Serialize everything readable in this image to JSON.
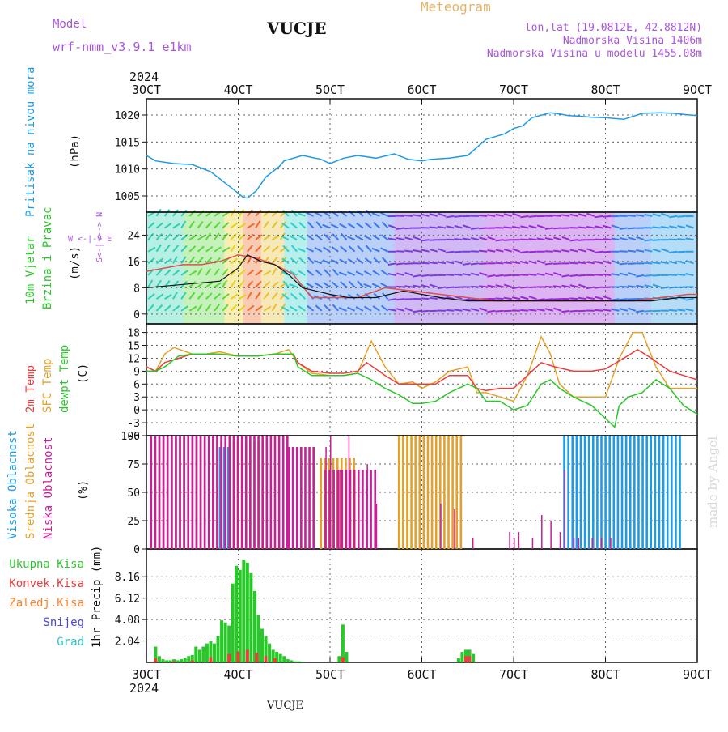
{
  "header": {
    "model_label": "Model",
    "model_name": "wrf-nmm_v3.9.1 e1km",
    "station": "VUCJE",
    "meteogram_label": "Meteogram",
    "lonlat": "lon,lat (19.0812E, 42.8812N)",
    "altitude": "Nadmorska Visina 1406m",
    "model_altitude": "Nadmorska Visina u modelu 1455.08m",
    "year_top": "2024",
    "year_bottom": "2024",
    "footer_station": "VUCJE",
    "watermark": "made by Angel"
  },
  "colors": {
    "pressure": "#1e9be6",
    "temp2m": "#f03c3c",
    "sfc": "#e6a028",
    "dewpt": "#28c828",
    "high_cloud": "#1e9be6",
    "mid_cloud": "#e6a028",
    "low_cloud": "#c81e96",
    "total_precip": "#28c828",
    "conv_precip": "#f03c3c",
    "frozen": "#ff8228",
    "snow": "#4646e6",
    "hail": "#28c8c8",
    "model": "#aa55dd",
    "meteogram": "#e6b464"
  },
  "chart_data": [
    {
      "type": "line",
      "panel": "pressure",
      "ylabel_title": "Pritisak na nivou mora",
      "ylabel_units": "(hPa)",
      "x_unit": "days after 3OCT 00 UTC",
      "x_ticks": [
        "3OCT",
        "4OCT",
        "5OCT",
        "6OCT",
        "7OCT",
        "8OCT",
        "9OCT"
      ],
      "ylim": [
        1002,
        1023
      ],
      "y_ticks": [
        1005,
        1010,
        1015,
        1020
      ],
      "series": [
        {
          "key": "pressure",
          "x": [
            0,
            0.1,
            0.3,
            0.5,
            0.7,
            0.85,
            1.0,
            1.05,
            1.1,
            1.2,
            1.3,
            1.45,
            1.5,
            1.7,
            1.9,
            2.0,
            2.15,
            2.3,
            2.5,
            2.7,
            2.85,
            3.0,
            3.1,
            3.3,
            3.5,
            3.7,
            3.9,
            4.0,
            4.1,
            4.2,
            4.4,
            4.5,
            4.6,
            4.7,
            4.85,
            5.0,
            5.2,
            5.4,
            5.6,
            5.75,
            5.85,
            6.0
          ],
          "values": [
            1012.5,
            1011.5,
            1011.0,
            1010.8,
            1009.5,
            1007.5,
            1005.5,
            1004.8,
            1004.6,
            1006.0,
            1008.5,
            1010.5,
            1011.5,
            1012.5,
            1011.8,
            1011.0,
            1012.0,
            1012.5,
            1012.0,
            1012.8,
            1011.8,
            1011.5,
            1011.8,
            1012.0,
            1012.5,
            1015.5,
            1016.5,
            1017.5,
            1018.0,
            1019.5,
            1020.4,
            1020.2,
            1019.9,
            1019.8,
            1019.6,
            1019.5,
            1019.2,
            1020.3,
            1020.4,
            1020.3,
            1020.1,
            1019.9
          ]
        }
      ]
    },
    {
      "type": "line",
      "panel": "wind",
      "ylabel_title_a": "10m Vjetar",
      "ylabel_title_b": "Brzina i Pravac",
      "ylabel_units": "(m/s)",
      "legend_compass_ns": "<--> N",
      "legend_compass_ew": "W <-|-> E",
      "legend_compass_s": "S<-|->",
      "ylim": [
        -3,
        31
      ],
      "y_ticks": [
        0,
        8,
        16,
        24
      ],
      "series": [
        {
          "key": "wind_speed",
          "x": [
            0,
            0.2,
            0.4,
            0.6,
            0.8,
            1.0,
            1.1,
            1.25,
            1.4,
            1.55,
            1.7,
            1.85,
            2.0,
            2.2,
            2.5,
            2.8,
            3.0,
            3.2,
            3.5,
            3.8,
            4.0,
            4.3,
            4.6,
            4.9,
            5.2,
            5.5,
            5.8,
            6.0
          ],
          "values": [
            8,
            8.5,
            9,
            9.5,
            10,
            14,
            18,
            16,
            15,
            12,
            8,
            7,
            6,
            5,
            5,
            7,
            6,
            5,
            4,
            4,
            4,
            4,
            4,
            4,
            4,
            4,
            5,
            5
          ]
        },
        {
          "key": "wind_gust",
          "x": [
            0,
            0.2,
            0.4,
            0.6,
            0.8,
            1.0,
            1.2,
            1.4,
            1.6,
            1.8,
            2.0,
            2.3,
            2.6,
            2.9,
            3.2,
            3.5,
            3.8,
            4.1,
            4.4,
            4.7,
            5.0,
            5.3,
            5.6,
            5.9,
            6.0
          ],
          "values": [
            13,
            14,
            15,
            15,
            16,
            18,
            17,
            15,
            12,
            5,
            5,
            5,
            8,
            7,
            6,
            5,
            4,
            4,
            4,
            4,
            4,
            4,
            5,
            6,
            6
          ]
        }
      ]
    },
    {
      "type": "line",
      "panel": "temperature",
      "ylabel_title_a": "2m Temp",
      "ylabel_title_b": "SFC Temp",
      "ylabel_title_c": "dewpt Temp",
      "ylabel_units": "(C)",
      "ylim": [
        -6,
        20
      ],
      "y_ticks": [
        -6,
        -3,
        0,
        3,
        6,
        9,
        12,
        15,
        18
      ],
      "series": [
        {
          "key": "t2m",
          "x": [
            0,
            0.1,
            0.2,
            0.35,
            0.5,
            0.65,
            0.8,
            1.0,
            1.2,
            1.4,
            1.6,
            1.65,
            1.8,
            2.0,
            2.15,
            2.3,
            2.4,
            2.6,
            2.75,
            2.9,
            3.0,
            3.15,
            3.3,
            3.5,
            3.6,
            3.7,
            3.85,
            4.0,
            4.15,
            4.3,
            4.45,
            4.65,
            4.85,
            5.0,
            5.2,
            5.35,
            5.5,
            5.7,
            5.85,
            6.0
          ],
          "values": [
            10,
            9,
            11,
            12,
            13,
            13,
            13,
            12.5,
            12.5,
            13,
            13,
            11,
            9,
            8.5,
            8.5,
            9,
            11,
            8,
            6,
            6,
            6,
            6,
            8,
            8,
            5,
            4.5,
            5,
            5,
            8,
            11,
            10,
            9,
            9,
            9.5,
            12,
            14,
            12,
            9,
            8,
            7
          ]
        },
        {
          "key": "sfc",
          "x": [
            0,
            0.1,
            0.2,
            0.3,
            0.5,
            0.65,
            0.8,
            1.0,
            1.2,
            1.4,
            1.55,
            1.65,
            1.8,
            2.0,
            2.15,
            2.3,
            2.45,
            2.6,
            2.75,
            2.9,
            3.0,
            3.15,
            3.3,
            3.5,
            3.6,
            3.7,
            3.85,
            4.0,
            4.15,
            4.3,
            4.4,
            4.5,
            4.65,
            4.85,
            5.0,
            5.15,
            5.3,
            5.4,
            5.55,
            5.7,
            5.85,
            6.0
          ],
          "values": [
            10,
            9,
            13,
            14.5,
            13,
            13,
            13.5,
            12.5,
            12.5,
            13,
            14,
            11,
            8.5,
            8,
            8,
            8.5,
            16,
            10,
            6,
            6.5,
            5,
            6.5,
            9,
            10,
            4,
            4,
            3,
            2,
            8,
            17,
            13,
            6,
            3,
            3,
            3,
            12,
            18,
            18,
            10,
            5,
            5,
            5
          ]
        },
        {
          "key": "dewpt",
          "x": [
            0,
            0.1,
            0.2,
            0.35,
            0.5,
            0.65,
            0.8,
            1.0,
            1.2,
            1.4,
            1.6,
            1.65,
            1.8,
            2.0,
            2.15,
            2.3,
            2.45,
            2.6,
            2.75,
            2.9,
            3.0,
            3.15,
            3.3,
            3.5,
            3.6,
            3.7,
            3.85,
            4.0,
            4.15,
            4.3,
            4.4,
            4.5,
            4.65,
            4.85,
            5.0,
            5.1,
            5.15,
            5.25,
            5.4,
            5.55,
            5.7,
            5.85,
            6.0
          ],
          "values": [
            9,
            9,
            10,
            12.5,
            13,
            13,
            13,
            12.5,
            12.5,
            13,
            13,
            10,
            8,
            8,
            8,
            8.5,
            7,
            5,
            3.5,
            1.5,
            1.5,
            2,
            4,
            6,
            5,
            2,
            2,
            0,
            1,
            6,
            7,
            5,
            3,
            1,
            -2,
            -4,
            1,
            3,
            4,
            7,
            5,
            1,
            -1
          ]
        }
      ]
    },
    {
      "type": "bar",
      "panel": "cloud",
      "ylabel_title_a": "Visoka Oblacnost",
      "ylabel_title_b": "Srednja Oblacnost",
      "ylabel_title_c": "Niska Oblacnost",
      "ylabel_units": "(%)",
      "ylim": [
        0,
        100
      ],
      "y_ticks": [
        0,
        25,
        50,
        75,
        100
      ],
      "series": [
        {
          "key": "high",
          "ranges": [
            [
              0.05,
              0.8,
              100
            ],
            [
              0.8,
              0.9,
              90
            ],
            [
              4.55,
              5.85,
              100
            ]
          ]
        },
        {
          "key": "mid",
          "ranges": [
            [
              0.05,
              1.35,
              95
            ],
            [
              2.75,
              3.45,
              100
            ],
            [
              1.9,
              2.3,
              80
            ]
          ]
        },
        {
          "key": "low",
          "ranges": [
            [
              0.05,
              1.55,
              100
            ],
            [
              1.55,
              1.85,
              90
            ],
            [
              1.95,
              2.5,
              70
            ]
          ]
        }
      ]
    },
    {
      "type": "bar",
      "panel": "precip",
      "ylabel_title": "1hr Precip (mm)",
      "legend": [
        "Ukupna Kisa",
        "Konvek.Kisa",
        "Zaledj.Kisa",
        "Snijeg",
        "Grad"
      ],
      "ylim": [
        0,
        10.8
      ],
      "y_ticks": [
        2.04,
        4.08,
        6.12,
        8.16
      ],
      "series": [
        {
          "key": "total",
          "x": [
            0.1,
            0.14,
            0.18,
            0.22,
            0.26,
            0.3,
            0.34,
            0.38,
            0.42,
            0.46,
            0.5,
            0.54,
            0.58,
            0.62,
            0.66,
            0.7,
            0.74,
            0.78,
            0.82,
            0.86,
            0.9,
            0.94,
            0.98,
            1.02,
            1.06,
            1.1,
            1.14,
            1.18,
            1.22,
            1.26,
            1.3,
            1.34,
            1.38,
            1.42,
            1.46,
            1.5,
            1.54,
            1.58,
            1.62,
            1.66,
            1.7,
            2.1,
            2.14,
            2.18,
            3.4,
            3.44,
            3.48,
            3.52,
            3.56
          ],
          "values": [
            1.5,
            0.6,
            0.3,
            0.2,
            0.2,
            0.3,
            0.2,
            0.3,
            0.4,
            0.6,
            0.7,
            1.5,
            1.2,
            1.5,
            1.8,
            2.0,
            1.8,
            2.5,
            4.0,
            3.8,
            3.5,
            7.5,
            9.2,
            8.8,
            9.8,
            9.5,
            8.5,
            6.8,
            4.5,
            3.2,
            2.5,
            1.8,
            1.2,
            1.0,
            0.8,
            0.6,
            0.3,
            0.2,
            0.1,
            0.1,
            0.05,
            0.6,
            3.6,
            1.0,
            0.4,
            1.0,
            1.2,
            1.2,
            0.8
          ]
        },
        {
          "key": "conv",
          "x": [
            0.1,
            0.3,
            0.5,
            0.7,
            0.9,
            1.0,
            1.1,
            1.2,
            1.3,
            1.4,
            2.14,
            3.48,
            3.52
          ],
          "values": [
            0.4,
            0.1,
            0.2,
            0.5,
            0.8,
            1.0,
            1.2,
            0.9,
            0.6,
            0.4,
            0.5,
            0.6,
            0.6
          ]
        }
      ]
    }
  ]
}
